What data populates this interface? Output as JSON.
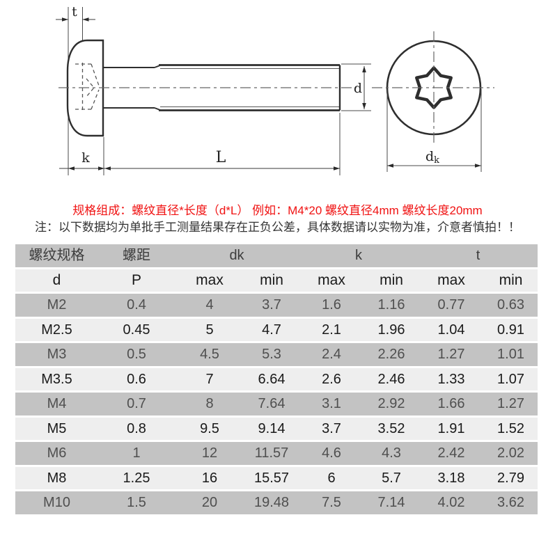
{
  "page": {
    "background": "#ffffff"
  },
  "drawing": {
    "labels": {
      "t": "t",
      "k": "k",
      "L": "L",
      "d": "d",
      "dk_main": "d",
      "dk_sub": "k"
    }
  },
  "notices": {
    "spec_line": "规格组成：螺纹直径*长度（d*L） 例如：M4*20 螺纹直径4mm 螺纹长度20mm",
    "spec_color": "#f01212",
    "note_line": "注：以下数据均为单批手工测量结果存在正负公差，具体数据请以实物为准，介意者慎拍！！",
    "note_color": "#333333"
  },
  "table": {
    "group_headers": {
      "spec": "螺纹规格",
      "pitch": "螺距",
      "dk": "dk",
      "k": "k",
      "t": "t"
    },
    "sub_headers": [
      "d",
      "P",
      "max",
      "min",
      "max",
      "min",
      "max",
      "min"
    ],
    "rows": [
      [
        "M2",
        "0.4",
        "4",
        "3.7",
        "1.6",
        "1.16",
        "0.77",
        "0.63"
      ],
      [
        "M2.5",
        "0.45",
        "5",
        "4.7",
        "2.1",
        "1.96",
        "1.04",
        "0.91"
      ],
      [
        "M3",
        "0.5",
        "4.5",
        "5.3",
        "2.4",
        "2.26",
        "1.27",
        "1.01"
      ],
      [
        "M3.5",
        "0.6",
        "7",
        "6.64",
        "2.6",
        "2.46",
        "1.33",
        "1.07"
      ],
      [
        "M4",
        "0.7",
        "8",
        "7.64",
        "3.1",
        "2.92",
        "1.66",
        "1.27"
      ],
      [
        "M5",
        "0.8",
        "9.5",
        "9.14",
        "3.7",
        "3.52",
        "1.91",
        "1.52"
      ],
      [
        "M6",
        "1",
        "12",
        "11.57",
        "4.6",
        "4.3",
        "2.42",
        "2.02"
      ],
      [
        "M8",
        "1.25",
        "16",
        "15.57",
        "6",
        "5.7",
        "3.18",
        "2.79"
      ],
      [
        "M10",
        "1.5",
        "20",
        "19.48",
        "7.5",
        "7.14",
        "4.02",
        "3.62"
      ]
    ],
    "colors": {
      "row_grey": "#c3c3c3",
      "row_light": "#eeeeee",
      "text_grey_row": "#4f4f4f",
      "text_light_row": "#1a1a1a"
    }
  }
}
